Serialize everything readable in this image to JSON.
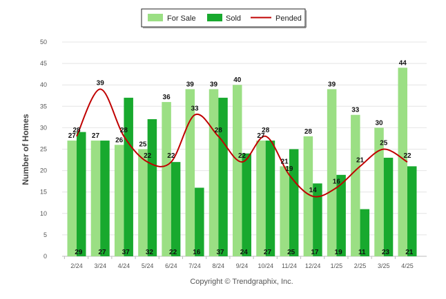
{
  "legend": {
    "for_sale": "For Sale",
    "sold": "Sold",
    "pended": "Pended"
  },
  "credit": "Copyright © Trendgraphix, Inc.",
  "colors": {
    "for_sale": "#9bdf84",
    "sold": "#18a92e",
    "pended": "#c00000",
    "grid": "#e4e4e4"
  },
  "chart_data": {
    "type": "bar",
    "ylabel": "Number of Homes",
    "xlabel": "",
    "ylim": [
      0,
      50
    ],
    "yticks": [
      0,
      5,
      10,
      15,
      20,
      25,
      30,
      35,
      40,
      45,
      50
    ],
    "grid": true,
    "legend_position": "top-center",
    "categories": [
      "2/24",
      "3/24",
      "4/24",
      "5/24",
      "6/24",
      "7/24",
      "8/24",
      "9/24",
      "10/24",
      "11/24",
      "12/24",
      "1/25",
      "2/25",
      "3/25",
      "4/25"
    ],
    "series": [
      {
        "name": "For Sale",
        "type": "bar",
        "values": [
          27,
          27,
          26,
          25,
          36,
          39,
          39,
          40,
          27,
          21,
          28,
          39,
          33,
          30,
          44
        ]
      },
      {
        "name": "Sold",
        "type": "bar",
        "values": [
          29,
          27,
          37,
          32,
          22,
          16,
          37,
          24,
          27,
          25,
          17,
          19,
          11,
          23,
          21
        ]
      },
      {
        "name": "Pended",
        "type": "line",
        "values": [
          28,
          39,
          28,
          22,
          22,
          33,
          28,
          22,
          28,
          19,
          14,
          16,
          21,
          25,
          22
        ]
      }
    ]
  }
}
